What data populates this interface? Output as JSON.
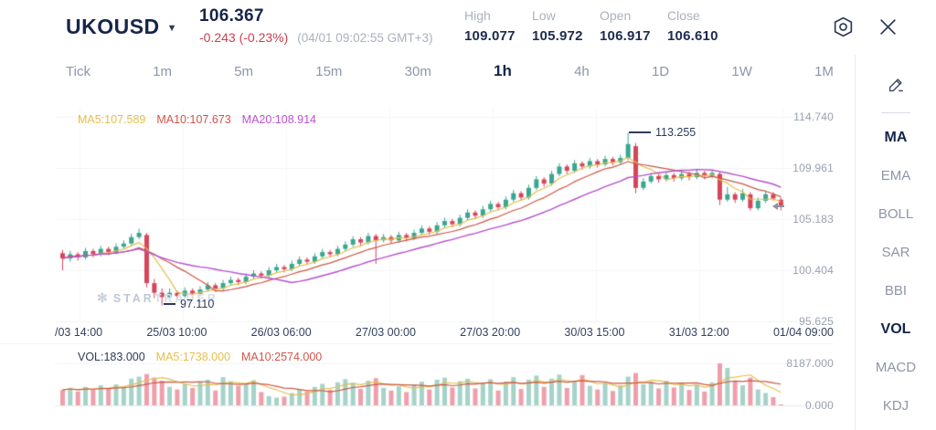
{
  "header": {
    "symbol": "UKOUSD",
    "dropdown_icon": "▼",
    "last_price": "106.367",
    "change": "-0.243 (-0.23%)",
    "timestamp": "(04/01 09:02:55 GMT+3)",
    "change_color": "#c9414e",
    "stats": [
      {
        "label": "High",
        "value": "109.077"
      },
      {
        "label": "Low",
        "value": "105.972"
      },
      {
        "label": "Open",
        "value": "106.917"
      },
      {
        "label": "Close",
        "value": "106.610"
      }
    ]
  },
  "tabs": {
    "items": [
      "Tick",
      "1m",
      "5m",
      "15m",
      "30m",
      "1h",
      "4h",
      "1D",
      "1W",
      "1M"
    ],
    "active": "1h"
  },
  "sidebar": {
    "items": [
      {
        "label": "MA",
        "active": true
      },
      {
        "label": "EMA",
        "active": false
      },
      {
        "label": "BOLL",
        "active": false
      },
      {
        "label": "SAR",
        "active": false
      },
      {
        "label": "BBI",
        "active": false
      },
      {
        "label": "VOL",
        "active": true
      },
      {
        "label": "MACD",
        "active": false
      },
      {
        "label": "KDJ",
        "active": false
      }
    ]
  },
  "chart": {
    "ma_legend": [
      {
        "label": "MA5:107.589",
        "color": "#e4bf4e"
      },
      {
        "label": "MA10:107.673",
        "color": "#d0564a"
      },
      {
        "label": "MA20:108.914",
        "color": "#bb52d6"
      }
    ],
    "y_axis": [
      "114.740",
      "109.961",
      "105.183",
      "100.404",
      "95.625"
    ],
    "x_axis": [
      "/03 14:00",
      "25/03 10:00",
      "26/03 06:00",
      "27/03 00:00",
      "27/03 20:00",
      "30/03 15:00",
      "31/03 12:00",
      "01/04 09:00"
    ],
    "annotation_high": "113.255",
    "annotation_low": "97.110",
    "watermark": {
      "logo": "✻",
      "text_primary": "STAR",
      "text_secondary": "TRADER"
    },
    "volume_legend": [
      {
        "label": "VOL:183.000",
        "color": "#2b3a5c"
      },
      {
        "label": "MA5:1738.000",
        "color": "#e4bf4e"
      },
      {
        "label": "MA10:2574.000",
        "color": "#d0564a"
      }
    ],
    "volume_y_axis": [
      "8187.000",
      "0.000"
    ]
  },
  "chart_data": {
    "type": "candlestick+volume",
    "timeframe": "1h",
    "ylim": [
      95.625,
      114.74
    ],
    "y_ticks": [
      114.74,
      109.961,
      105.183,
      100.404,
      95.625
    ],
    "x_ticks": [
      "/03 14:00",
      "25/03 10:00",
      "26/03 06:00",
      "27/03 00:00",
      "27/03 20:00",
      "30/03 15:00",
      "31/03 12:00",
      "01/04 09:00"
    ],
    "high_annotation": 113.255,
    "low_annotation": 97.11,
    "last_price": 106.367,
    "volume_max": 8187,
    "volume_last": 183,
    "colors": {
      "up": "#3aa691",
      "down": "#d7455b",
      "vol_up": "#a6d3c9",
      "vol_down": "#ef9faa",
      "ma5": "#e4bf4e",
      "ma10": "#cd5743",
      "ma20": "#b650cf"
    },
    "candles": [
      [
        102.0,
        102.3,
        100.4,
        101.5
      ],
      [
        101.5,
        102.2,
        101.2,
        101.9
      ],
      [
        101.9,
        102.1,
        101.3,
        101.6
      ],
      [
        101.6,
        102.5,
        101.4,
        102.2
      ],
      [
        102.2,
        102.4,
        101.6,
        101.9
      ],
      [
        101.9,
        102.7,
        101.7,
        102.4
      ],
      [
        102.4,
        102.6,
        101.8,
        102.1
      ],
      [
        102.1,
        102.9,
        101.9,
        102.6
      ],
      [
        102.6,
        103.2,
        102.4,
        102.9
      ],
      [
        102.9,
        103.8,
        102.7,
        103.5
      ],
      [
        103.5,
        104.3,
        103.3,
        103.9
      ],
      [
        103.7,
        103.9,
        98.8,
        99.2
      ],
      [
        99.2,
        99.6,
        97.8,
        98.3
      ],
      [
        98.3,
        98.7,
        97.11,
        97.9
      ],
      [
        97.9,
        98.7,
        97.7,
        98.3
      ],
      [
        98.3,
        98.5,
        97.7,
        98.0
      ],
      [
        98.0,
        98.8,
        97.8,
        98.5
      ],
      [
        98.5,
        98.7,
        97.9,
        98.2
      ],
      [
        98.2,
        98.9,
        98.0,
        98.6
      ],
      [
        98.6,
        99.3,
        98.4,
        99.0
      ],
      [
        99.0,
        99.2,
        98.4,
        98.7
      ],
      [
        98.7,
        99.5,
        98.5,
        99.2
      ],
      [
        99.2,
        99.8,
        99.0,
        99.5
      ],
      [
        99.5,
        99.7,
        99.0,
        99.3
      ],
      [
        99.3,
        100.1,
        99.1,
        99.8
      ],
      [
        99.8,
        100.4,
        99.6,
        100.1
      ],
      [
        100.1,
        100.3,
        99.6,
        99.9
      ],
      [
        99.9,
        100.7,
        99.7,
        100.4
      ],
      [
        100.4,
        101.0,
        100.2,
        100.7
      ],
      [
        100.7,
        100.9,
        100.2,
        100.5
      ],
      [
        100.5,
        101.3,
        100.3,
        101.0
      ],
      [
        101.0,
        101.7,
        100.8,
        101.4
      ],
      [
        101.4,
        101.6,
        100.9,
        101.2
      ],
      [
        101.2,
        102.0,
        101.0,
        101.7
      ],
      [
        101.7,
        102.4,
        101.5,
        102.1
      ],
      [
        102.1,
        102.3,
        101.6,
        101.9
      ],
      [
        101.9,
        102.7,
        101.7,
        102.4
      ],
      [
        102.4,
        103.1,
        102.2,
        102.8
      ],
      [
        102.8,
        103.6,
        102.6,
        103.3
      ],
      [
        103.3,
        103.5,
        102.7,
        103.0
      ],
      [
        103.0,
        103.9,
        102.8,
        103.6
      ],
      [
        103.6,
        103.8,
        101.0,
        103.2
      ],
      [
        103.2,
        103.8,
        103.0,
        103.5
      ],
      [
        103.5,
        103.7,
        102.9,
        103.2
      ],
      [
        103.2,
        104.0,
        103.0,
        103.7
      ],
      [
        103.7,
        103.9,
        103.1,
        103.4
      ],
      [
        103.4,
        104.2,
        103.2,
        103.9
      ],
      [
        103.9,
        104.6,
        103.7,
        104.3
      ],
      [
        104.3,
        104.5,
        103.7,
        104.0
      ],
      [
        104.0,
        104.9,
        103.8,
        104.6
      ],
      [
        104.6,
        105.3,
        104.4,
        105.0
      ],
      [
        105.0,
        105.2,
        104.4,
        104.7
      ],
      [
        104.7,
        105.6,
        104.5,
        105.3
      ],
      [
        105.3,
        106.1,
        105.1,
        105.8
      ],
      [
        105.8,
        106.0,
        105.2,
        105.5
      ],
      [
        105.5,
        106.4,
        105.3,
        106.1
      ],
      [
        106.1,
        106.9,
        105.9,
        106.6
      ],
      [
        106.6,
        106.8,
        106.0,
        106.3
      ],
      [
        106.3,
        107.3,
        106.1,
        107.0
      ],
      [
        107.0,
        107.9,
        106.8,
        107.6
      ],
      [
        107.6,
        107.8,
        106.9,
        107.2
      ],
      [
        107.2,
        108.4,
        107.0,
        108.1
      ],
      [
        108.1,
        109.2,
        107.9,
        108.9
      ],
      [
        108.9,
        109.1,
        108.2,
        108.5
      ],
      [
        108.5,
        109.7,
        108.3,
        109.4
      ],
      [
        109.4,
        110.4,
        109.2,
        110.1
      ],
      [
        110.1,
        110.3,
        109.4,
        109.7
      ],
      [
        109.7,
        110.7,
        109.5,
        110.4
      ],
      [
        110.4,
        110.6,
        109.8,
        110.1
      ],
      [
        110.1,
        110.9,
        109.9,
        110.6
      ],
      [
        110.6,
        110.8,
        110.0,
        110.3
      ],
      [
        110.3,
        111.1,
        110.1,
        110.8
      ],
      [
        110.8,
        111.0,
        110.2,
        110.5
      ],
      [
        110.5,
        111.2,
        110.3,
        110.9
      ],
      [
        110.9,
        113.255,
        110.7,
        112.2
      ],
      [
        112.0,
        112.3,
        107.6,
        108.1
      ],
      [
        108.1,
        109.0,
        107.9,
        108.7
      ],
      [
        108.7,
        109.5,
        108.5,
        109.2
      ],
      [
        109.2,
        109.4,
        108.6,
        108.9
      ],
      [
        108.9,
        109.6,
        108.7,
        109.3
      ],
      [
        109.3,
        109.5,
        108.7,
        109.0
      ],
      [
        109.0,
        109.7,
        108.8,
        109.4
      ],
      [
        109.4,
        109.6,
        108.8,
        109.1
      ],
      [
        109.1,
        109.8,
        108.9,
        109.5
      ],
      [
        109.5,
        109.7,
        108.9,
        109.2
      ],
      [
        109.2,
        109.8,
        109.0,
        109.5
      ],
      [
        109.4,
        109.6,
        106.5,
        107.0
      ],
      [
        107.0,
        108.2,
        106.8,
        107.5
      ],
      [
        107.5,
        107.7,
        106.7,
        107.0
      ],
      [
        107.0,
        108.0,
        106.8,
        107.6
      ],
      [
        107.5,
        107.7,
        105.972,
        106.2
      ],
      [
        106.2,
        107.2,
        106.0,
        106.9
      ],
      [
        106.9,
        107.8,
        106.7,
        107.5
      ],
      [
        107.5,
        107.7,
        106.9,
        107.1
      ],
      [
        107.0,
        107.2,
        106.0,
        106.367
      ]
    ],
    "volumes": [
      3000,
      3400,
      2700,
      3600,
      3100,
      3900,
      3300,
      4100,
      3700,
      5200,
      5600,
      6100,
      5400,
      4800,
      3600,
      3100,
      4200,
      3400,
      4600,
      5000,
      2900,
      5500,
      4700,
      3800,
      4300,
      4900,
      2600,
      1800,
      1500,
      1700,
      2400,
      3100,
      2700,
      3600,
      4200,
      3000,
      4500,
      5100,
      4400,
      3200,
      4800,
      5300,
      3400,
      2900,
      3700,
      2600,
      4100,
      4600,
      3100,
      5000,
      5400,
      3500,
      4700,
      5200,
      3300,
      4400,
      5100,
      2900,
      4600,
      5500,
      3200,
      5000,
      5800,
      3600,
      5200,
      6000,
      3400,
      4700,
      5900,
      3800,
      3100,
      4300,
      2800,
      3900,
      5600,
      6300,
      4100,
      4600,
      3300,
      4800,
      3500,
      4400,
      3000,
      4100,
      2700,
      4500,
      8187,
      7300,
      4800,
      3900,
      5400,
      3100,
      2400,
      1600,
      183
    ]
  }
}
